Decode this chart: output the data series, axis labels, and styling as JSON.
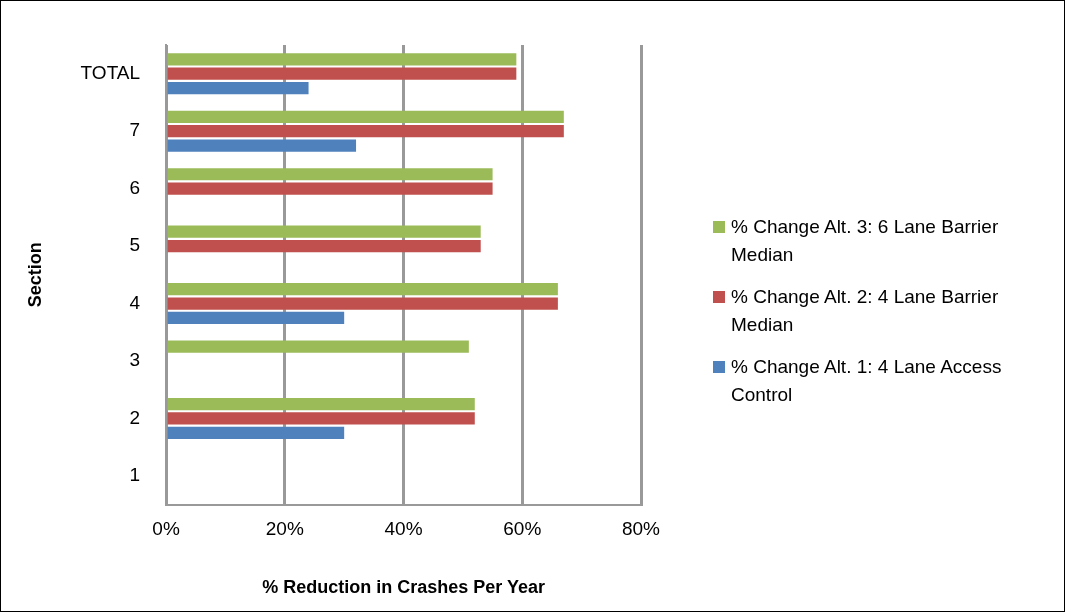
{
  "chart_data": {
    "type": "bar",
    "orientation": "horizontal",
    "xlabel": "% Reduction in Crashes Per Year",
    "ylabel": "Section",
    "categories": [
      "TOTAL",
      "7",
      "6",
      "5",
      "4",
      "3",
      "2",
      "1"
    ],
    "series": [
      {
        "name": "% Change Alt. 3: 6 Lane Barrier Median",
        "color": "#9bbb59",
        "values": [
          59,
          67,
          55,
          53,
          66,
          51,
          52,
          0
        ]
      },
      {
        "name": "% Change Alt. 2: 4 Lane Barrier Median",
        "color": "#c0504d",
        "values": [
          59,
          67,
          55,
          53,
          66,
          0,
          52,
          0
        ]
      },
      {
        "name": "% Change Alt. 1: 4 Lane Access Control",
        "color": "#4f81bd",
        "values": [
          24,
          32,
          0,
          0,
          30,
          0,
          30,
          0
        ]
      }
    ],
    "xlim": [
      0,
      80
    ],
    "xticks": [
      {
        "value": 0,
        "label": "0%"
      },
      {
        "value": 20,
        "label": "20%"
      },
      {
        "value": 40,
        "label": "40%"
      },
      {
        "value": 60,
        "label": "60%"
      },
      {
        "value": 80,
        "label": "80%"
      }
    ],
    "grid": "x",
    "legend": "right"
  }
}
